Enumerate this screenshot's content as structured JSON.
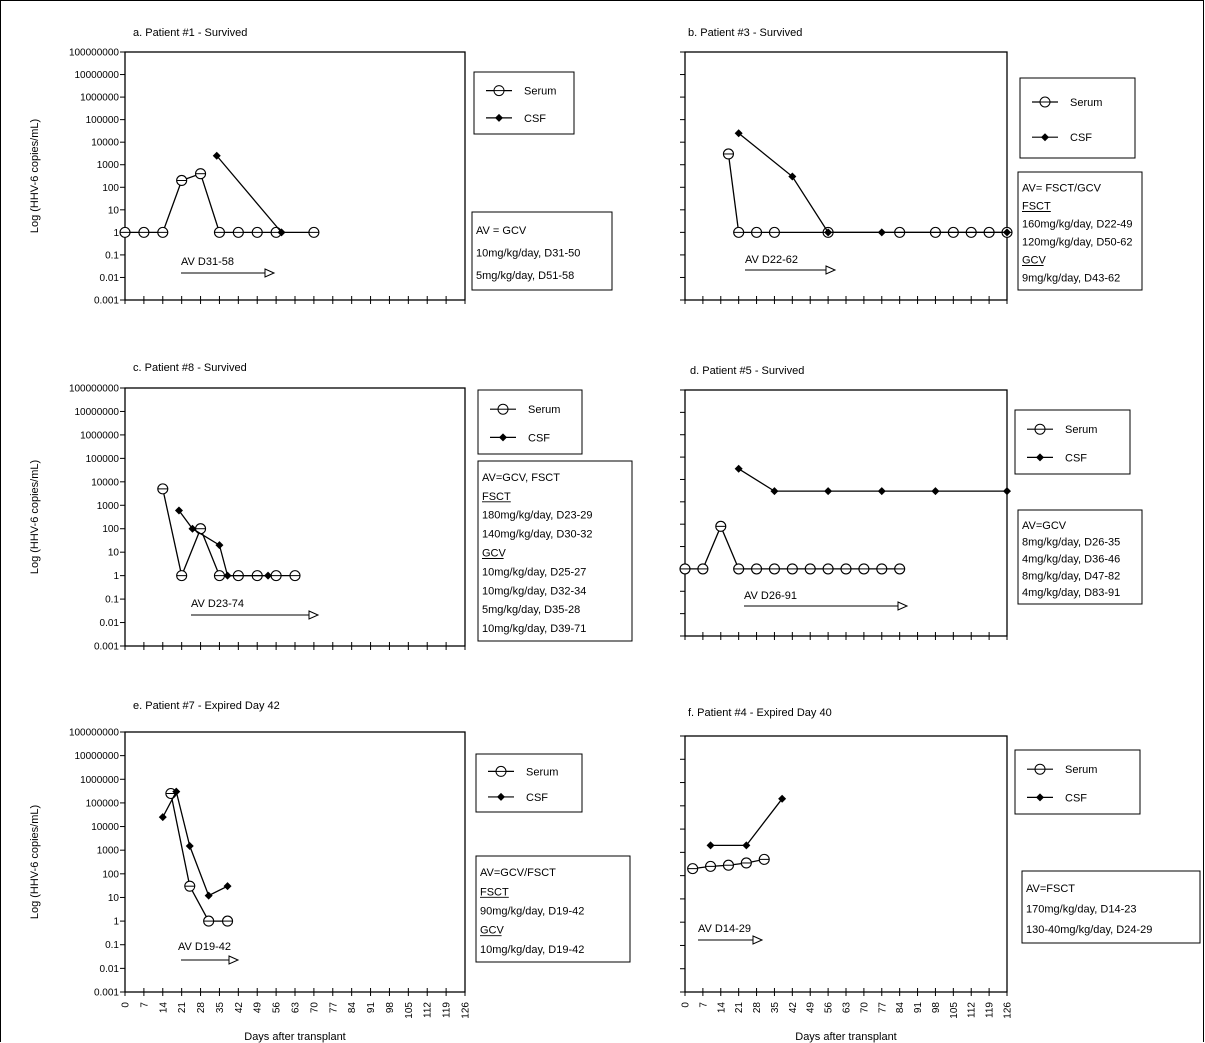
{
  "figure": {
    "xlabel": "Days after transplant",
    "ylabel": "Log (HHV-6 copies/mL)",
    "y_ticks": [
      "100000000",
      "10000000",
      "1000000",
      "100000",
      "10000",
      "1000",
      "100",
      "10",
      "1",
      "0.1",
      "0.01",
      "0.001"
    ],
    "x_ticks": [
      "0",
      "7",
      "14",
      "21",
      "28",
      "35",
      "42",
      "49",
      "56",
      "63",
      "70",
      "77",
      "84",
      "91",
      "98",
      "105",
      "112",
      "119",
      "126"
    ],
    "series_names": {
      "serum": "Serum",
      "csf": "CSF"
    }
  },
  "chart_data": [
    {
      "id": "a",
      "type": "line",
      "title": "a. Patient #1 - Survived",
      "ylabel": "Log (HHV-6 copies/mL)",
      "y_scale": "log",
      "ylim": [
        0.001,
        100000000
      ],
      "series": [
        {
          "name": "Serum",
          "marker": "open-circle",
          "x": [
            0,
            7,
            14,
            21,
            28,
            35,
            42,
            49,
            56,
            70
          ],
          "y": [
            1,
            1,
            1,
            200,
            400,
            1,
            1,
            1,
            1,
            1
          ]
        },
        {
          "name": "CSF",
          "marker": "diamond",
          "x": [
            34,
            58
          ],
          "y": [
            2500,
            1
          ]
        }
      ],
      "treatment": "AV D31-58",
      "notes": [
        "AV = GCV",
        "10mg/kg/day, D31-50",
        "5mg/kg/day, D51-58"
      ]
    },
    {
      "id": "b",
      "type": "line",
      "title": "b. Patient #3 - Survived",
      "y_scale": "log",
      "ylim": [
        0.001,
        100000000
      ],
      "series": [
        {
          "name": "Serum",
          "marker": "open-circle",
          "x": [
            17,
            21,
            28,
            35,
            56,
            84,
            98,
            105,
            112,
            119,
            126
          ],
          "y": [
            3000,
            1,
            1,
            1,
            1,
            1,
            1,
            1,
            1,
            1,
            1
          ]
        },
        {
          "name": "CSF",
          "marker": "diamond",
          "x": [
            21,
            42,
            56,
            77,
            126
          ],
          "y": [
            25000,
            300,
            1,
            1,
            1
          ]
        }
      ],
      "treatment": "AV D22-62",
      "notes": [
        "AV= FSCT/GCV",
        "FSCT",
        "160mg/kg/day, D22-49",
        "120mg/kg/day, D50-62",
        "GCV",
        "9mg/kg/day, D43-62"
      ],
      "underlined": [
        "FSCT",
        "GCV"
      ]
    },
    {
      "id": "c",
      "type": "line",
      "title": "c. Patient #8 - Survived",
      "ylabel": "Log (HHV-6 copies/mL)",
      "y_scale": "log",
      "ylim": [
        0.001,
        100000000
      ],
      "series": [
        {
          "name": "Serum",
          "marker": "open-circle",
          "x": [
            14,
            21,
            28,
            35,
            42,
            49,
            56,
            63
          ],
          "y": [
            5000,
            1,
            100,
            1,
            1,
            1,
            1,
            1
          ]
        },
        {
          "name": "CSF",
          "marker": "diamond",
          "x": [
            20,
            25,
            35,
            38,
            53
          ],
          "y": [
            600,
            100,
            20,
            1,
            1
          ]
        }
      ],
      "treatment": "AV D23-74",
      "notes": [
        "AV=GCV, FSCT",
        "FSCT",
        "180mg/kg/day, D23-29",
        "140mg/kg/day, D30-32",
        "GCV",
        "10mg/kg/day, D25-27",
        "10mg/kg/day, D32-34",
        "5mg/kg/day, D35-28",
        "10mg/kg/day, D39-71"
      ],
      "underlined": [
        "FSCT",
        "GCV"
      ]
    },
    {
      "id": "d",
      "type": "line",
      "title": "d. Patient #5 - Survived",
      "y_scale": "log",
      "ylim": [
        0.001,
        100000000
      ],
      "series": [
        {
          "name": "Serum",
          "marker": "open-circle",
          "x": [
            0,
            7,
            14,
            21,
            28,
            35,
            42,
            49,
            56,
            63,
            70,
            77,
            84
          ],
          "y": [
            1,
            1,
            80,
            1,
            1,
            1,
            1,
            1,
            1,
            1,
            1,
            1,
            1
          ]
        },
        {
          "name": "CSF",
          "marker": "diamond",
          "x": [
            21,
            35,
            56,
            77,
            98,
            126
          ],
          "y": [
            30000,
            3000,
            3000,
            3000,
            3000,
            3000
          ]
        }
      ],
      "treatment": "AV D26-91",
      "notes": [
        "AV=GCV",
        "8mg/kg/day, D26-35",
        "4mg/kg/day, D36-46",
        "8mg/kg/day, D47-82",
        "4mg/kg/day, D83-91"
      ]
    },
    {
      "id": "e",
      "type": "line",
      "title": "e. Patient #7 - Expired Day 42",
      "ylabel": "Log (HHV-6 copies/mL)",
      "y_scale": "log",
      "ylim": [
        0.001,
        100000000
      ],
      "series": [
        {
          "name": "Serum",
          "marker": "open-circle",
          "x": [
            17,
            24,
            31,
            38
          ],
          "y": [
            250000,
            30,
            1,
            1
          ]
        },
        {
          "name": "CSF",
          "marker": "diamond",
          "x": [
            14,
            19,
            24,
            31,
            38
          ],
          "y": [
            25000,
            300000,
            1500,
            12,
            30
          ]
        }
      ],
      "treatment": "AV D19-42",
      "notes": [
        "AV=GCV/FSCT",
        "FSCT",
        "90mg/kg/day, D19-42",
        "GCV",
        "10mg/kg/day, D19-42"
      ],
      "underlined": [
        "FSCT",
        "GCV"
      ],
      "xlabel": "Days after transplant"
    },
    {
      "id": "f",
      "type": "line",
      "title": "f. Patient #4 - Expired Day 40",
      "y_scale": "log",
      "ylim": [
        0.001,
        100000000
      ],
      "series": [
        {
          "name": "Serum",
          "marker": "open-circle",
          "x": [
            3,
            10,
            17,
            24,
            31
          ],
          "y": [
            200,
            250,
            280,
            350,
            500
          ]
        },
        {
          "name": "CSF",
          "marker": "diamond",
          "x": [
            10,
            24,
            38
          ],
          "y": [
            2000,
            2000,
            200000
          ]
        }
      ],
      "treatment": "AV D14-29",
      "notes": [
        "AV=FSCT",
        "170mg/kg/day, D14-23",
        "130-40mg/kg/day, D24-29"
      ],
      "xlabel": "Days after transplant"
    }
  ]
}
